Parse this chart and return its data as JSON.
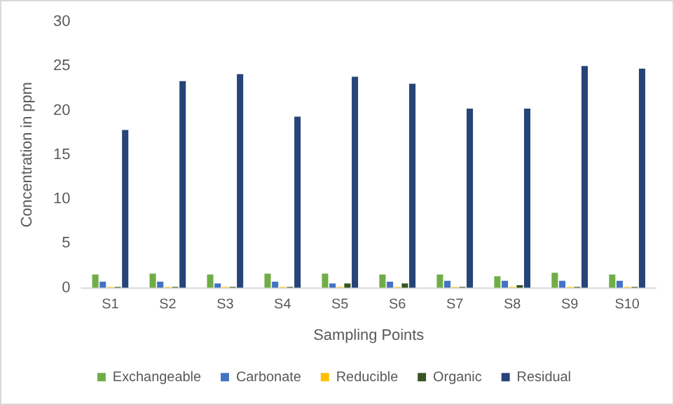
{
  "chart_data": {
    "type": "bar",
    "xlabel": "Sampling Points",
    "ylabel": "Concentration in ppm",
    "categories": [
      "S1",
      "S2",
      "S3",
      "S4",
      "S5",
      "S6",
      "S7",
      "S8",
      "S9",
      "S10"
    ],
    "series": [
      {
        "name": "Exchangeable",
        "color": "#70ad47",
        "values": [
          1.5,
          1.6,
          1.5,
          1.6,
          1.6,
          1.5,
          1.5,
          1.3,
          1.7,
          1.5
        ]
      },
      {
        "name": "Carbonate",
        "color": "#4472c4",
        "values": [
          0.7,
          0.7,
          0.5,
          0.7,
          0.5,
          0.7,
          0.8,
          0.8,
          0.8,
          0.8
        ]
      },
      {
        "name": "Reducible",
        "color": "#ffc000",
        "values": [
          0.1,
          0.1,
          0.1,
          0.1,
          0.1,
          0.1,
          0.1,
          0.1,
          0.1,
          0.1
        ]
      },
      {
        "name": "Organic",
        "color": "#375623",
        "values": [
          0.1,
          0.1,
          0.1,
          0.1,
          0.5,
          0.5,
          0.1,
          0.3,
          0.1,
          0.1
        ]
      },
      {
        "name": "Residual",
        "color": "#264478",
        "values": [
          17.8,
          23.3,
          24.1,
          19.3,
          23.8,
          23.0,
          20.2,
          20.2,
          25.0,
          24.7
        ]
      }
    ],
    "ylim": [
      0,
      30
    ],
    "yticks": [
      0,
      5,
      10,
      15,
      20,
      25,
      30
    ],
    "grid": false,
    "legend": "bottom"
  }
}
